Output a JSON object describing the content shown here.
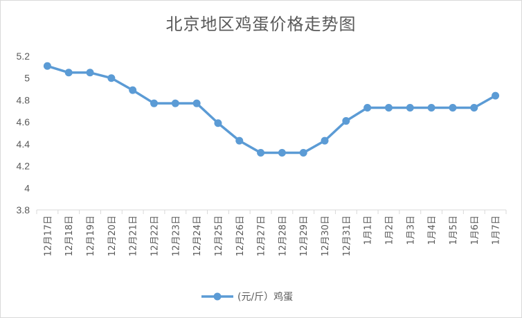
{
  "chart_data": {
    "type": "line",
    "title": "北京地区鸡蛋价格走势图",
    "xlabel": "",
    "ylabel": "",
    "categories": [
      "12月17日",
      "12月18日",
      "12月19日",
      "12月20日",
      "12月21日",
      "12月22日",
      "12月23日",
      "12月24日",
      "12月25日",
      "12月26日",
      "12月27日",
      "12月28日",
      "12月29日",
      "12月30日",
      "12月31日",
      "1月1日",
      "1月2日",
      "1月3日",
      "1月4日",
      "1月5日",
      "1月6日",
      "1月7日"
    ],
    "series": [
      {
        "name": "(元/斤）鸡蛋",
        "values": [
          5.11,
          5.05,
          5.05,
          5.0,
          4.89,
          4.77,
          4.77,
          4.77,
          4.59,
          4.43,
          4.32,
          4.32,
          4.32,
          4.43,
          4.61,
          4.73,
          4.73,
          4.73,
          4.73,
          4.73,
          4.73,
          4.84
        ]
      }
    ],
    "ylim": [
      3.8,
      5.2
    ],
    "yticks": [
      "3.8",
      "4",
      "4.2",
      "4.4",
      "4.6",
      "4.8",
      "5",
      "5.2"
    ],
    "legend_position": "bottom",
    "grid": false,
    "series_color": "#5b9bd5"
  }
}
